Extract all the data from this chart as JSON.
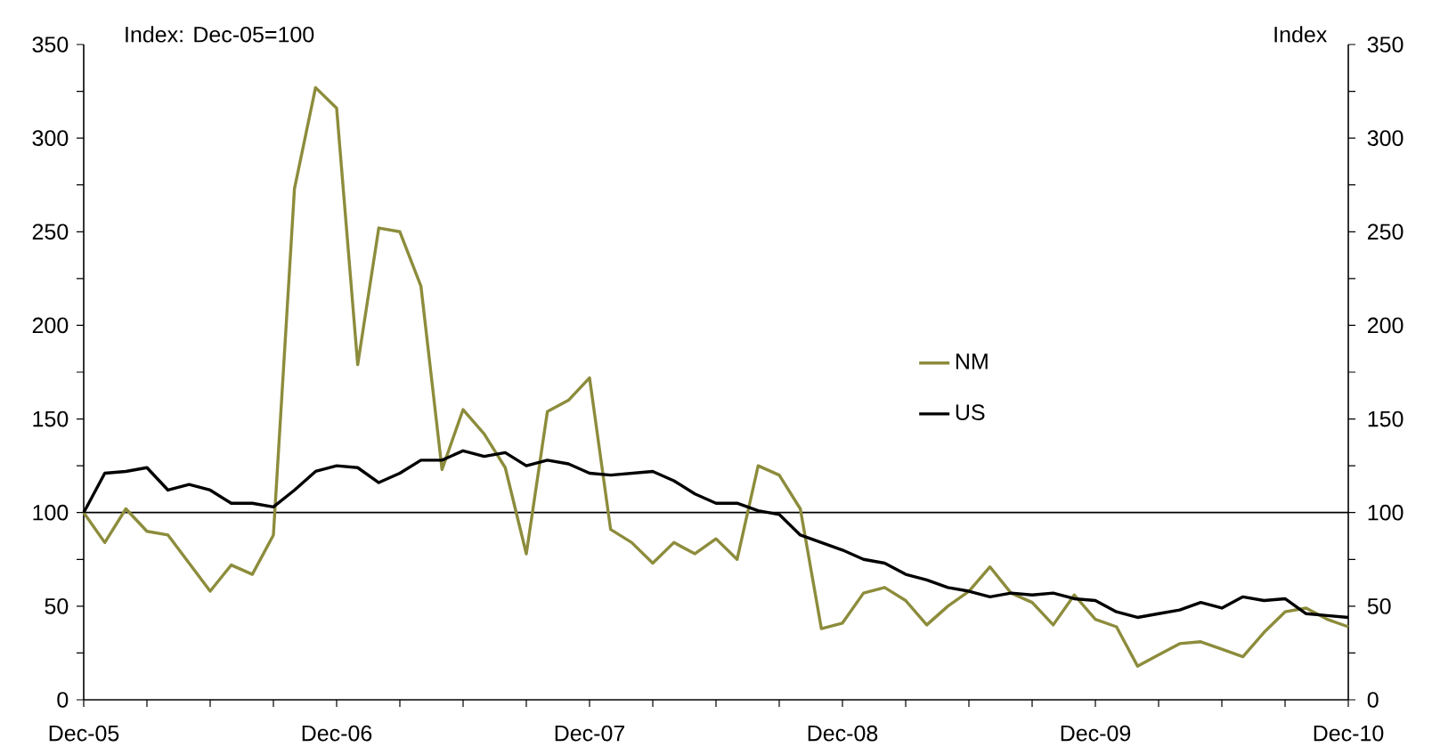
{
  "chart_data": {
    "type": "line",
    "ylabel": "Index: Dec-05=100",
    "y2label": "Index",
    "x": [
      "2005-12",
      "2006-01",
      "2006-02",
      "2006-03",
      "2006-04",
      "2006-05",
      "2006-06",
      "2006-07",
      "2006-08",
      "2006-09",
      "2006-10",
      "2006-11",
      "2006-12",
      "2007-01",
      "2007-02",
      "2007-03",
      "2007-04",
      "2007-05",
      "2007-06",
      "2007-07",
      "2007-08",
      "2007-09",
      "2007-10",
      "2007-11",
      "2007-12",
      "2008-01",
      "2008-02",
      "2008-03",
      "2008-04",
      "2008-05",
      "2008-06",
      "2008-07",
      "2008-08",
      "2008-09",
      "2008-10",
      "2008-11",
      "2008-12",
      "2009-01",
      "2009-02",
      "2009-03",
      "2009-04",
      "2009-05",
      "2009-06",
      "2009-07",
      "2009-08",
      "2009-09",
      "2009-10",
      "2009-11",
      "2009-12",
      "2010-01",
      "2010-02",
      "2010-03",
      "2010-04",
      "2010-05",
      "2010-06",
      "2010-07",
      "2010-08",
      "2010-09",
      "2010-10",
      "2010-11",
      "2010-12"
    ],
    "series": [
      {
        "name": "NM",
        "color": "#8c8c3c",
        "values": [
          100,
          84,
          102,
          90,
          88,
          73,
          58,
          72,
          67,
          88,
          273,
          327,
          316,
          179,
          252,
          250,
          221,
          123,
          155,
          142,
          124,
          78,
          154,
          160,
          172,
          91,
          84,
          73,
          84,
          78,
          86,
          75,
          125,
          120,
          102,
          38,
          41,
          57,
          60,
          53,
          40,
          50,
          58,
          71,
          57,
          52,
          40,
          56,
          43,
          39,
          18,
          24,
          30,
          31,
          27,
          23,
          36,
          47,
          49,
          43,
          39
        ]
      },
      {
        "name": "US",
        "color": "#000000",
        "values": [
          100,
          121,
          122,
          124,
          112,
          115,
          112,
          105,
          105,
          103,
          112,
          122,
          125,
          124,
          116,
          121,
          128,
          128,
          133,
          130,
          132,
          125,
          128,
          126,
          121,
          120,
          121,
          122,
          117,
          110,
          105,
          105,
          101,
          99,
          88,
          84,
          80,
          75,
          73,
          67,
          64,
          60,
          58,
          55,
          57,
          56,
          57,
          54,
          53,
          47,
          44,
          46,
          48,
          52,
          49,
          55,
          53,
          54,
          46,
          45,
          44
        ]
      }
    ],
    "xlim": [
      "2005-12",
      "2010-12"
    ],
    "xticks": [
      {
        "value": "2005-12",
        "label": "Dec-05"
      },
      {
        "value": "2006-03",
        "label": null
      },
      {
        "value": "2006-06",
        "label": null
      },
      {
        "value": "2006-09",
        "label": null
      },
      {
        "value": "2006-12",
        "label": "Dec-06"
      },
      {
        "value": "2007-03",
        "label": null
      },
      {
        "value": "2007-06",
        "label": null
      },
      {
        "value": "2007-09",
        "label": null
      },
      {
        "value": "2007-12",
        "label": "Dec-07"
      },
      {
        "value": "2008-03",
        "label": null
      },
      {
        "value": "2008-06",
        "label": null
      },
      {
        "value": "2008-09",
        "label": null
      },
      {
        "value": "2008-12",
        "label": "Dec-08"
      },
      {
        "value": "2009-03",
        "label": null
      },
      {
        "value": "2009-06",
        "label": null
      },
      {
        "value": "2009-09",
        "label": null
      },
      {
        "value": "2009-12",
        "label": "Dec-09"
      },
      {
        "value": "2010-03",
        "label": null
      },
      {
        "value": "2010-06",
        "label": null
      },
      {
        "value": "2010-09",
        "label": null
      },
      {
        "value": "2010-12",
        "label": "Dec-10"
      }
    ],
    "ylim": [
      0,
      350
    ],
    "yticks": [
      0,
      {
        "value": 25,
        "label": null
      },
      50,
      {
        "value": 75,
        "label": null
      },
      100,
      {
        "value": 125,
        "label": null
      },
      150,
      {
        "value": 175,
        "label": null
      },
      200,
      {
        "value": 225,
        "label": null
      },
      250,
      {
        "value": 275,
        "label": null
      },
      300,
      {
        "value": 325,
        "label": null
      },
      350
    ],
    "y2lim": [
      0,
      350
    ],
    "y2ticks": [
      0,
      {
        "value": 25,
        "label": null
      },
      50,
      {
        "value": 75,
        "label": null
      },
      100,
      {
        "value": 125,
        "label": null
      },
      150,
      {
        "value": 175,
        "label": null
      },
      200,
      {
        "value": 225,
        "label": null
      },
      250,
      {
        "value": 275,
        "label": null
      },
      300,
      {
        "value": 325,
        "label": null
      },
      350
    ],
    "ref_lines": [
      {
        "axis": "y",
        "value": 100,
        "color": "#000000"
      }
    ],
    "legend": "center",
    "marker": "none",
    "line_style": "solid",
    "grid": false
  }
}
